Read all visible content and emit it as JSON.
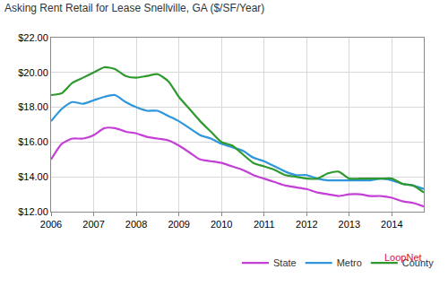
{
  "chart_data": {
    "type": "line",
    "title": "Asking Rent Retail for Lease Snellville, GA ($/SF/Year)",
    "x": [
      2006,
      2006.25,
      2006.5,
      2006.75,
      2007,
      2007.25,
      2007.5,
      2007.75,
      2008,
      2008.25,
      2008.5,
      2008.75,
      2009,
      2009.25,
      2009.5,
      2009.75,
      2010,
      2010.25,
      2010.5,
      2010.75,
      2011,
      2011.25,
      2011.5,
      2011.75,
      2012,
      2012.25,
      2012.5,
      2012.75,
      2013,
      2013.25,
      2013.5,
      2013.75,
      2014,
      2014.25,
      2014.5,
      2014.75
    ],
    "series": [
      {
        "name": "State",
        "color": "#c43fd6",
        "values": [
          15.0,
          15.9,
          16.2,
          16.2,
          16.4,
          16.8,
          16.8,
          16.6,
          16.5,
          16.3,
          16.2,
          16.1,
          15.8,
          15.4,
          15.0,
          14.9,
          14.8,
          14.6,
          14.4,
          14.1,
          13.9,
          13.7,
          13.5,
          13.4,
          13.3,
          13.1,
          13.0,
          12.9,
          13.0,
          13.0,
          12.9,
          12.9,
          12.8,
          12.6,
          12.5,
          12.3
        ]
      },
      {
        "name": "Metro",
        "color": "#2f96dc",
        "values": [
          17.2,
          17.9,
          18.3,
          18.2,
          18.4,
          18.6,
          18.7,
          18.3,
          18.0,
          17.8,
          17.8,
          17.5,
          17.2,
          16.8,
          16.4,
          16.2,
          15.9,
          15.7,
          15.5,
          15.1,
          14.9,
          14.6,
          14.3,
          14.1,
          14.1,
          13.9,
          13.8,
          13.8,
          13.8,
          13.8,
          13.8,
          13.9,
          13.8,
          13.6,
          13.5,
          13.3
        ]
      },
      {
        "name": "County",
        "color": "#2e9a2e",
        "values": [
          18.7,
          18.8,
          19.4,
          19.7,
          20.0,
          20.3,
          20.2,
          19.8,
          19.7,
          19.8,
          19.9,
          19.5,
          18.6,
          17.9,
          17.2,
          16.6,
          16.0,
          15.8,
          15.3,
          14.8,
          14.6,
          14.4,
          14.1,
          14.0,
          13.9,
          13.9,
          14.2,
          14.3,
          13.9,
          13.9,
          13.9,
          13.9,
          13.9,
          13.6,
          13.5,
          13.1
        ]
      }
    ],
    "xlim": [
      2006,
      2014.75
    ],
    "xticks": [
      2006,
      2007,
      2008,
      2009,
      2010,
      2011,
      2012,
      2013,
      2014
    ],
    "ylim": [
      12,
      22
    ],
    "yticks": [
      {
        "value": 12,
        "label": "$12.00"
      },
      {
        "value": 14,
        "label": "$14.00"
      },
      {
        "value": 16,
        "label": "$16.00"
      },
      {
        "value": 18,
        "label": "$18.00"
      },
      {
        "value": 20,
        "label": "$20.00"
      },
      {
        "value": 22,
        "label": "$22.00"
      }
    ],
    "grid": true,
    "legend": "bottom",
    "annotations": [
      "LoopNet"
    ]
  }
}
